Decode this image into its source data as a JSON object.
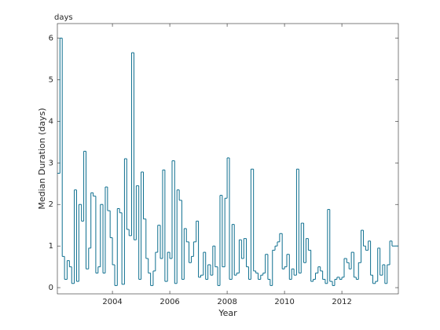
{
  "chart_data": {
    "type": "stairs",
    "unit_label": "days",
    "xlabel": "Year",
    "ylabel": "Median Duration (days)",
    "color": "#0e6f8f",
    "xlim": [
      2002.08,
      2013.97
    ],
    "ylim": [
      -0.15,
      6.35
    ],
    "xticks": [
      2004,
      2006,
      2008,
      2010,
      2012
    ],
    "yticks": [
      0,
      1,
      2,
      3,
      4,
      5,
      6
    ],
    "x": [
      2002.08,
      2002.17,
      2002.25,
      2002.33,
      2002.42,
      2002.5,
      2002.58,
      2002.67,
      2002.75,
      2002.83,
      2002.92,
      2003.0,
      2003.08,
      2003.17,
      2003.25,
      2003.33,
      2003.42,
      2003.5,
      2003.58,
      2003.67,
      2003.75,
      2003.83,
      2003.92,
      2004.0,
      2004.08,
      2004.17,
      2004.25,
      2004.33,
      2004.42,
      2004.5,
      2004.58,
      2004.67,
      2004.75,
      2004.83,
      2004.92,
      2005.0,
      2005.08,
      2005.17,
      2005.25,
      2005.33,
      2005.42,
      2005.5,
      2005.58,
      2005.67,
      2005.75,
      2005.83,
      2005.92,
      2006.0,
      2006.08,
      2006.17,
      2006.25,
      2006.33,
      2006.42,
      2006.5,
      2006.58,
      2006.67,
      2006.75,
      2006.83,
      2006.92,
      2007.0,
      2007.08,
      2007.17,
      2007.25,
      2007.33,
      2007.42,
      2007.5,
      2007.58,
      2007.67,
      2007.75,
      2007.83,
      2007.92,
      2008.0,
      2008.08,
      2008.17,
      2008.25,
      2008.33,
      2008.42,
      2008.5,
      2008.58,
      2008.67,
      2008.75,
      2008.83,
      2008.92,
      2009.0,
      2009.08,
      2009.17,
      2009.25,
      2009.33,
      2009.42,
      2009.5,
      2009.58,
      2009.67,
      2009.75,
      2009.83,
      2009.92,
      2010.0,
      2010.08,
      2010.17,
      2010.25,
      2010.33,
      2010.42,
      2010.5,
      2010.58,
      2010.67,
      2010.75,
      2010.83,
      2010.92,
      2011.0,
      2011.08,
      2011.17,
      2011.25,
      2011.33,
      2011.42,
      2011.5,
      2011.58,
      2011.67,
      2011.75,
      2011.83,
      2011.92,
      2012.0,
      2012.08,
      2012.17,
      2012.25,
      2012.33,
      2012.42,
      2012.5,
      2012.58,
      2012.67,
      2012.75,
      2012.83,
      2012.92,
      2013.0,
      2013.08,
      2013.17,
      2013.25,
      2013.33,
      2013.42,
      2013.5,
      2013.58,
      2013.67,
      2013.75
    ],
    "values": [
      2.75,
      6.0,
      0.75,
      0.2,
      0.65,
      0.5,
      0.1,
      2.35,
      0.15,
      2.0,
      1.6,
      3.28,
      0.45,
      0.95,
      2.28,
      2.2,
      0.35,
      0.5,
      2.0,
      0.35,
      2.42,
      1.85,
      1.2,
      0.55,
      0.05,
      1.9,
      1.8,
      0.08,
      3.1,
      1.4,
      1.25,
      5.65,
      1.15,
      2.45,
      0.2,
      2.78,
      1.65,
      0.7,
      0.35,
      0.05,
      0.4,
      0.85,
      1.5,
      0.7,
      2.83,
      0.15,
      0.85,
      0.7,
      3.05,
      0.1,
      2.35,
      2.1,
      0.2,
      1.42,
      1.1,
      0.6,
      0.75,
      1.1,
      1.6,
      0.25,
      0.3,
      0.85,
      0.2,
      0.55,
      0.3,
      1.0,
      0.5,
      0.05,
      2.22,
      0.5,
      2.15,
      3.12,
      0.2,
      1.52,
      0.3,
      0.35,
      1.15,
      0.7,
      1.18,
      0.5,
      0.2,
      2.85,
      0.4,
      0.35,
      0.2,
      0.3,
      0.35,
      0.8,
      0.2,
      0.05,
      0.9,
      1.0,
      1.1,
      1.3,
      0.45,
      0.5,
      0.8,
      0.2,
      0.45,
      0.3,
      2.85,
      0.35,
      1.55,
      0.6,
      1.18,
      0.9,
      0.15,
      0.2,
      0.35,
      0.5,
      0.4,
      0.2,
      0.1,
      1.88,
      0.15,
      0.05,
      0.2,
      0.25,
      0.2,
      0.25,
      0.7,
      0.6,
      0.45,
      0.85,
      0.25,
      0.2,
      0.6,
      1.38,
      1.0,
      0.9,
      1.12,
      0.3,
      0.1,
      0.15,
      0.95,
      0.3,
      0.55,
      0.1,
      0.55,
      1.12,
      1.0
    ]
  }
}
